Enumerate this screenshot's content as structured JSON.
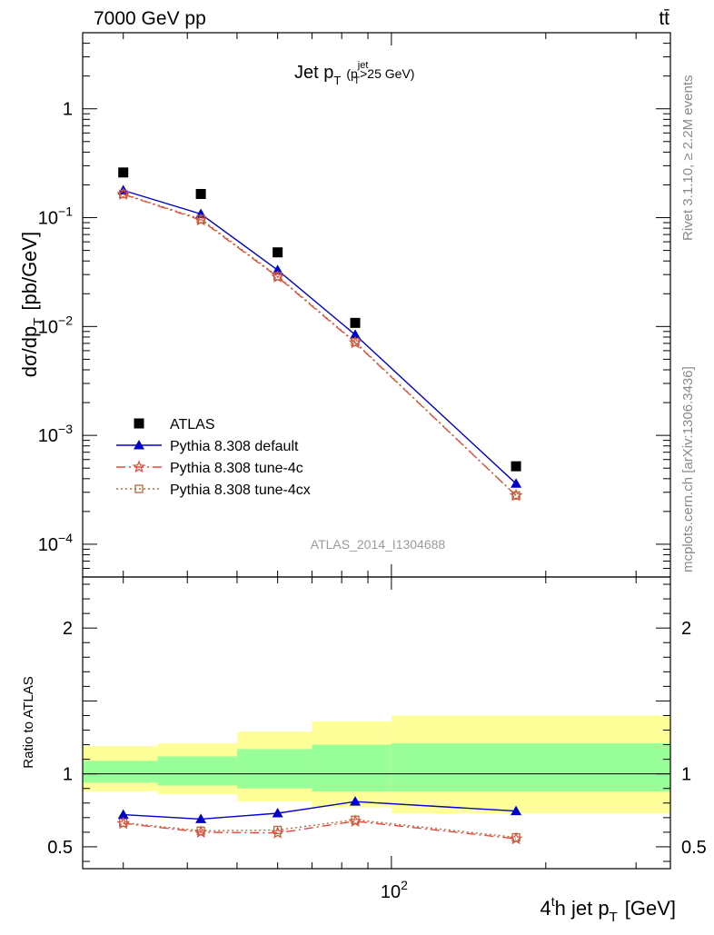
{
  "header": {
    "energy_label": "7000 GeV pp",
    "process_label": "tt̄"
  },
  "side_labels": {
    "rivet": "Rivet 3.1.10, ≥ 2.2M events",
    "mcplots": "mcplots.cern.ch [arXiv:1306.3436]"
  },
  "chart_data": [
    {
      "type": "line",
      "title": "Jet p_T (p_T^jet > 25 GeV)",
      "title_parts": {
        "main": "Jet p",
        "sub1": "T",
        "paren_open": "(p",
        "sup": "jet",
        "sub2": "T",
        "rest": ">25 GeV)"
      },
      "watermark": "ATLAS_2014_I1304688",
      "ylabel": "dσ/dp_T [pb/GeV]",
      "ylabel_parts": {
        "main": "dσ/dp",
        "sub": "T",
        "unit": "[pb/GeV]"
      },
      "xscale": "log",
      "yscale": "log",
      "xlim": [
        25,
        350
      ],
      "ylim": [
        5e-05,
        5
      ],
      "y_ticks": [
        {
          "value": 1,
          "base": "1",
          "exp": ""
        },
        {
          "value": 0.1,
          "base": "10",
          "exp": "−1"
        },
        {
          "value": 0.01,
          "base": "10",
          "exp": "−2"
        },
        {
          "value": 0.001,
          "base": "10",
          "exp": "−3"
        },
        {
          "value": 0.0001,
          "base": "10",
          "exp": "−4"
        }
      ],
      "legend_placement": "bottom-left",
      "series": [
        {
          "name": "ATLAS",
          "style": "data",
          "color": "#000000",
          "marker": "square",
          "x": [
            30,
            42.5,
            60,
            85,
            175
          ],
          "y": [
            0.26,
            0.165,
            0.048,
            0.0108,
            0.00052
          ]
        },
        {
          "name": "Pythia 8.308 default",
          "style": "solid",
          "color": "#0000cc",
          "marker": "triangle",
          "x": [
            30,
            42.5,
            60,
            85,
            175
          ],
          "y": [
            0.178,
            0.108,
            0.033,
            0.0084,
            0.00036
          ]
        },
        {
          "name": "Pythia 8.308 tune-4c",
          "style": "dashdot",
          "color": "#e8483c",
          "marker": "star",
          "x": [
            30,
            42.5,
            60,
            85,
            175
          ],
          "y": [
            0.164,
            0.095,
            0.0285,
            0.0071,
            0.00028
          ]
        },
        {
          "name": "Pythia 8.308 tune-4cx",
          "style": "dotted",
          "color": "#b8683a",
          "marker": "open-square",
          "x": [
            30,
            42.5,
            60,
            85,
            175
          ],
          "y": [
            0.165,
            0.097,
            0.029,
            0.0072,
            0.00028
          ]
        }
      ]
    },
    {
      "type": "line",
      "ylabel": "Ratio to ATLAS",
      "xlabel_parts": {
        "main": "4",
        "sup": "t",
        "mid": "h jet p",
        "sub": "T",
        "unit": "[GeV]"
      },
      "xscale": "log",
      "xlim": [
        25,
        350
      ],
      "ylim": [
        0.35,
        2.35
      ],
      "y_ticks": [
        {
          "value": 0.5,
          "label": "0.5"
        },
        {
          "value": 1,
          "label": "1"
        },
        {
          "value": 2,
          "label": "2"
        }
      ],
      "x_ticks": [
        {
          "value": 100,
          "base": "10",
          "exp": "2"
        }
      ],
      "bins": [
        25,
        35,
        50,
        70,
        100,
        350
      ],
      "band_outer": [
        [
          0.88,
          1.19
        ],
        [
          0.86,
          1.21
        ],
        [
          0.81,
          1.29
        ],
        [
          0.77,
          1.36
        ],
        [
          0.73,
          1.4
        ]
      ],
      "band_inner": [
        [
          0.94,
          1.09
        ],
        [
          0.92,
          1.12
        ],
        [
          0.9,
          1.17
        ],
        [
          0.88,
          1.2
        ],
        [
          0.88,
          1.21
        ]
      ],
      "reference": 1,
      "series": [
        {
          "name": "Pythia 8.308 default",
          "style": "solid",
          "color": "#0000cc",
          "marker": "triangle",
          "x": [
            30,
            42.5,
            60,
            85,
            175
          ],
          "y": [
            0.72,
            0.69,
            0.73,
            0.81,
            0.745
          ]
        },
        {
          "name": "Pythia 8.308 tune-4c",
          "style": "dashdot",
          "color": "#e8483c",
          "marker": "star",
          "x": [
            30,
            42.5,
            60,
            85,
            175
          ],
          "y": [
            0.66,
            0.6,
            0.595,
            0.675,
            0.555
          ]
        },
        {
          "name": "Pythia 8.308 tune-4cx",
          "style": "dotted",
          "color": "#b8683a",
          "marker": "open-square",
          "x": [
            30,
            42.5,
            60,
            85,
            175
          ],
          "y": [
            0.665,
            0.61,
            0.615,
            0.685,
            0.565
          ]
        }
      ]
    }
  ]
}
